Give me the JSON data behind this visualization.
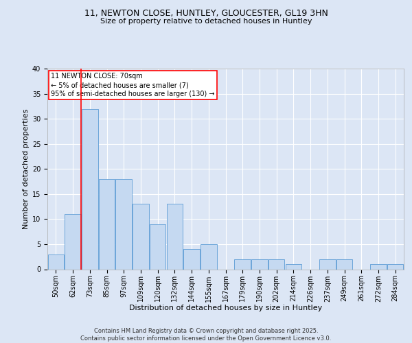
{
  "title_line1": "11, NEWTON CLOSE, HUNTLEY, GLOUCESTER, GL19 3HN",
  "title_line2": "Size of property relative to detached houses in Huntley",
  "xlabel": "Distribution of detached houses by size in Huntley",
  "ylabel": "Number of detached properties",
  "categories": [
    "50sqm",
    "62sqm",
    "73sqm",
    "85sqm",
    "97sqm",
    "109sqm",
    "120sqm",
    "132sqm",
    "144sqm",
    "155sqm",
    "167sqm",
    "179sqm",
    "190sqm",
    "202sqm",
    "214sqm",
    "226sqm",
    "237sqm",
    "249sqm",
    "261sqm",
    "272sqm",
    "284sqm"
  ],
  "values": [
    3,
    11,
    32,
    18,
    18,
    13,
    9,
    13,
    4,
    5,
    0,
    2,
    2,
    2,
    1,
    0,
    2,
    2,
    0,
    1,
    1
  ],
  "bar_color": "#c5d9f1",
  "bar_edge_color": "#5b9bd5",
  "red_line_x": 1.5,
  "annotation_text": "11 NEWTON CLOSE: 70sqm\n← 5% of detached houses are smaller (7)\n95% of semi-detached houses are larger (130) →",
  "annotation_box_color": "white",
  "annotation_box_edge": "red",
  "ylim": [
    0,
    40
  ],
  "yticks": [
    0,
    5,
    10,
    15,
    20,
    25,
    30,
    35,
    40
  ],
  "footer_text": "Contains HM Land Registry data © Crown copyright and database right 2025.\nContains public sector information licensed under the Open Government Licence v3.0.",
  "background_color": "#dce6f5",
  "plot_bg_color": "#dce6f5",
  "grid_color": "white",
  "title_fontsize": 9,
  "subtitle_fontsize": 8,
  "axis_label_fontsize": 8,
  "tick_fontsize": 7,
  "annotation_fontsize": 7,
  "footer_fontsize": 6
}
